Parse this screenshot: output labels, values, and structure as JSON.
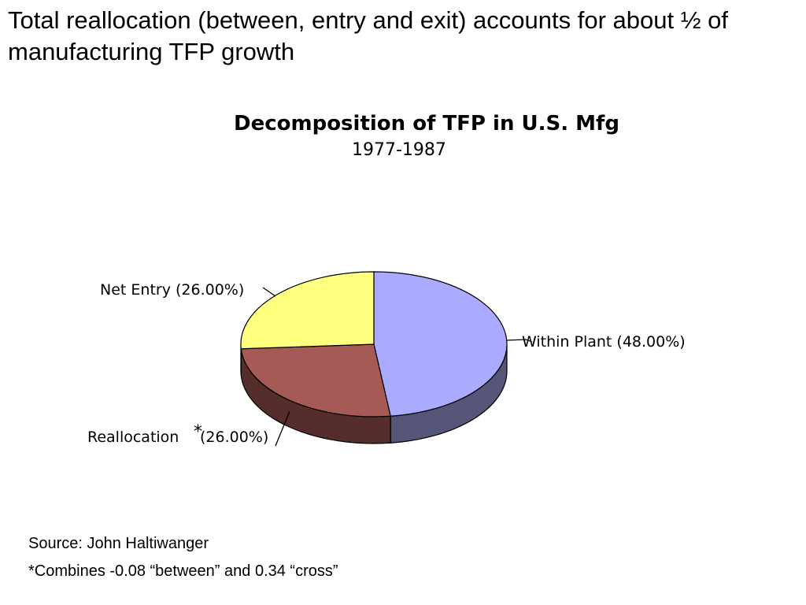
{
  "slide": {
    "headline": "Total reallocation (between, entry and exit) accounts for about ½ of manufacturing TFP growth",
    "source": "Source: John Haltiwanger",
    "footnote": "*Combines -0.08 “between” and 0.34 “cross”"
  },
  "chart_data": {
    "type": "pie",
    "title": "Decomposition of TFP in U.S. Mfg",
    "subtitle": "1977-1987",
    "labels": [
      "Within Plant (48.00%)",
      "Reallocation",
      "*",
      "(26.00%)",
      "Net Entry (26.00%)"
    ],
    "slices": [
      {
        "name": "Within Plant",
        "value": 48.0,
        "color": "#aaaaff",
        "side_color": "#555577"
      },
      {
        "name": "Reallocation",
        "value": 26.0,
        "color": "#a65a55",
        "side_color": "#552d2a"
      },
      {
        "name": "Net Entry",
        "value": 26.0,
        "color": "#ffff80",
        "side_color": "#808040"
      }
    ],
    "is_3d": true,
    "legend": "none"
  }
}
